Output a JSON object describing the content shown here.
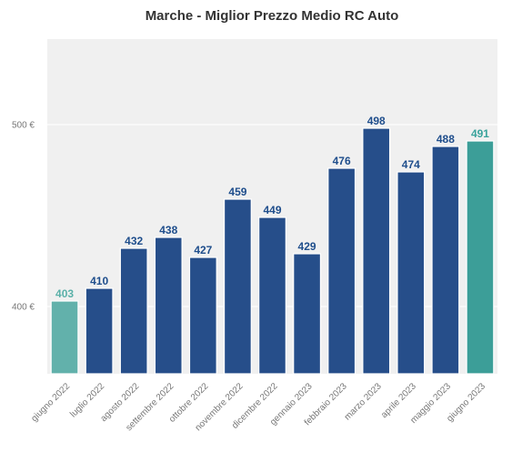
{
  "chart_data": {
    "type": "bar",
    "title": "Marche - Miglior Prezzo Medio RC Auto",
    "xlabel": "",
    "ylabel": "",
    "categories": [
      "giugno 2022",
      "luglio 2022",
      "agosto 2022",
      "settembre 2022",
      "ottobre 2022",
      "novembre 2022",
      "dicembre 2022",
      "gennaio 2023",
      "febbraio 2023",
      "marzo 2023",
      "aprile 2023",
      "maggio 2023",
      "giugno 2023"
    ],
    "values": [
      403,
      410,
      432,
      438,
      427,
      459,
      449,
      429,
      476,
      498,
      474,
      488,
      491
    ],
    "value_labels": [
      "403",
      "410",
      "432",
      "438",
      "427",
      "459",
      "449",
      "429",
      "476",
      "498",
      "474",
      "488",
      "491"
    ],
    "ylim": [
      363,
      547
    ],
    "yticks": [
      400,
      500
    ],
    "ytick_labels": [
      "400 €",
      "500 €"
    ],
    "grid": true,
    "colors": {
      "bar": "#264e8a",
      "first_bar": "#62b1ab",
      "last_bar": "#3c9e98",
      "label": "#1f4e8c",
      "first_label": "#5ab0a8",
      "last_label": "#3aa39c",
      "plot_bg": "#f0f0f0",
      "grid": "#ffffff"
    }
  }
}
